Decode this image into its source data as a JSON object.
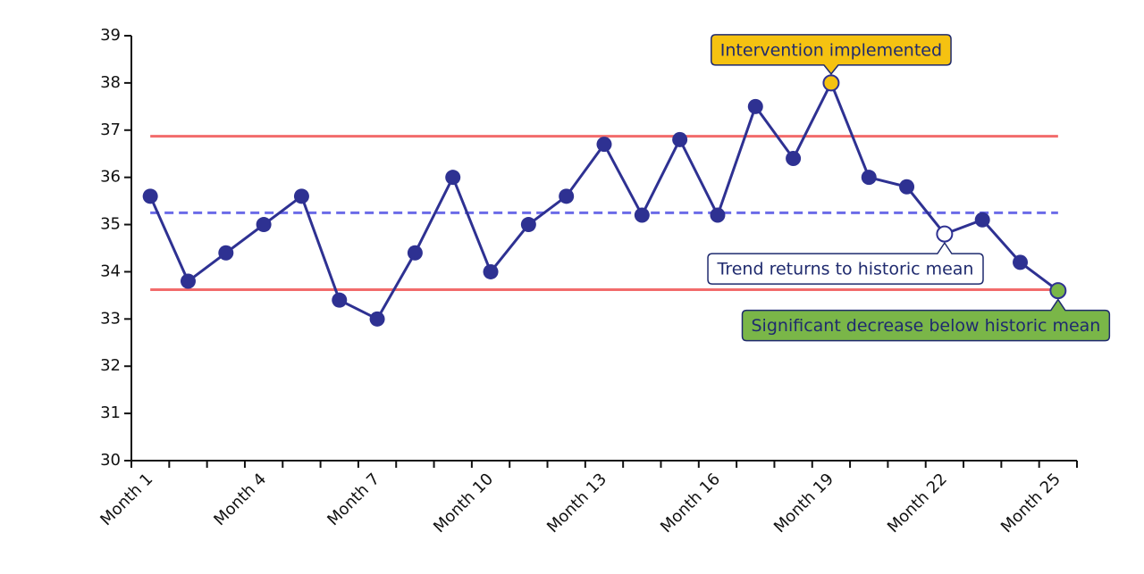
{
  "chart_data": {
    "type": "line",
    "categories": [
      "Month 1",
      null,
      null,
      "Month 4",
      null,
      null,
      "Month 7",
      null,
      null,
      "Month 10",
      null,
      null,
      "Month 13",
      null,
      null,
      "Month 16",
      null,
      null,
      "Month 19",
      null,
      null,
      "Month 22",
      null,
      null,
      "Month 25"
    ],
    "series": [
      {
        "color": "#2e3192",
        "values": [
          35.6,
          33.8,
          34.4,
          35.0,
          35.6,
          33.4,
          33.0,
          34.4,
          36.0,
          34.0,
          35.0,
          35.6,
          36.7,
          35.2,
          36.8,
          35.2,
          37.5,
          36.4,
          38.0,
          36.0,
          35.8,
          34.8,
          35.1,
          34.2,
          33.6
        ]
      }
    ],
    "control_lines": [
      {
        "value": 36.87,
        "color": "#f26b6b",
        "dashed": false
      },
      {
        "value": 35.25,
        "color": "#6b6be8",
        "dashed": true
      },
      {
        "value": 33.62,
        "color": "#f26b6b",
        "dashed": false
      }
    ],
    "annotations": [
      {
        "text": "Intervention implemented",
        "index": 18,
        "color": "#f5c211",
        "position": "above"
      },
      {
        "text": "Trend returns to historic mean",
        "index": 21,
        "color": "#ffffff",
        "position": "below"
      },
      {
        "text": "Significant decrease below historic mean",
        "index": 24,
        "color": "#7ab648",
        "position": "below"
      }
    ],
    "ylim": [
      30,
      39
    ],
    "yticks": [
      30,
      31,
      32,
      33,
      34,
      35,
      36,
      37,
      38,
      39
    ]
  }
}
